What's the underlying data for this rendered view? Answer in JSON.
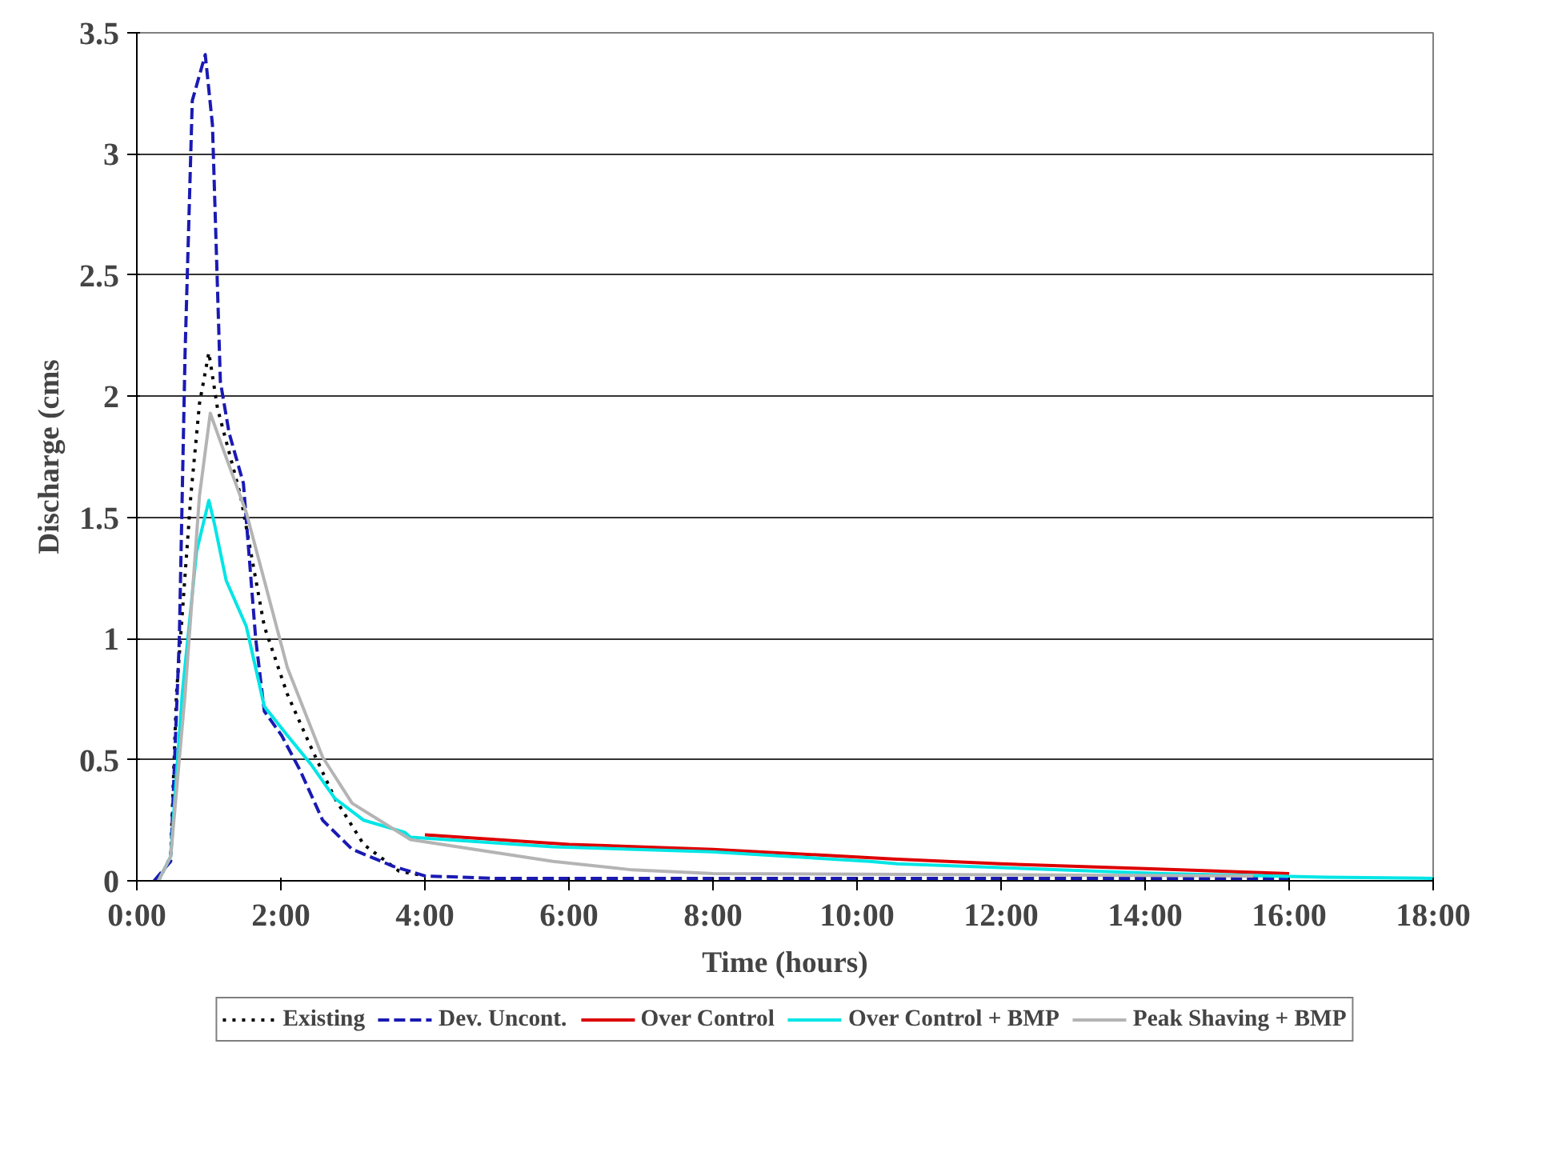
{
  "chart_data": {
    "type": "line",
    "xlabel": "Time (hours)",
    "ylabel": "Discharge (cms",
    "xlim": [
      0,
      18
    ],
    "ylim": [
      0,
      3.5
    ],
    "xticks": [
      {
        "value": 0,
        "label": "0:00"
      },
      {
        "value": 2,
        "label": "2:00"
      },
      {
        "value": 4,
        "label": "4:00"
      },
      {
        "value": 6,
        "label": "6:00"
      },
      {
        "value": 8,
        "label": "8:00"
      },
      {
        "value": 10,
        "label": "10:00"
      },
      {
        "value": 12,
        "label": "12:00"
      },
      {
        "value": 14,
        "label": "14:00"
      },
      {
        "value": 16,
        "label": "16:00"
      },
      {
        "value": 18,
        "label": "18:00"
      }
    ],
    "yticks": [
      0,
      0.5,
      1,
      1.5,
      2,
      2.5,
      3,
      3.5
    ],
    "grid": "y",
    "legend": "bottom",
    "series": [
      {
        "name": "Existing",
        "color": "#000000",
        "line_style": "dotted",
        "x": [
          0.3,
          0.47,
          0.55,
          0.75,
          0.87,
          1.0,
          1.12,
          1.44,
          1.77,
          2.09,
          2.42,
          2.75,
          3.15,
          3.64,
          4.0
        ],
        "values": [
          0.0,
          0.1,
          0.77,
          1.59,
          1.97,
          2.18,
          1.95,
          1.59,
          1.05,
          0.77,
          0.55,
          0.34,
          0.15,
          0.04,
          0.02
        ]
      },
      {
        "name": "Dev. Uncont.",
        "color": "#1a1ab3",
        "line_style": "dashed",
        "x": [
          0.24,
          0.47,
          0.59,
          0.67,
          0.77,
          0.95,
          1.05,
          1.16,
          1.28,
          1.48,
          1.65,
          1.77,
          2.01,
          2.26,
          2.58,
          2.99,
          3.56,
          4.0,
          5.0,
          8.0,
          12.0,
          16.0
        ],
        "values": [
          0.0,
          0.08,
          1.0,
          2.18,
          3.22,
          3.41,
          3.12,
          2.06,
          1.85,
          1.64,
          1.0,
          0.7,
          0.6,
          0.46,
          0.25,
          0.13,
          0.06,
          0.02,
          0.01,
          0.01,
          0.01,
          0.01
        ]
      },
      {
        "name": "Over Control",
        "color": "#dd0000",
        "line_style": "solid",
        "x": [
          4.0,
          6.0,
          8.0,
          10.5,
          12.0,
          14.0,
          16.0
        ],
        "values": [
          0.19,
          0.15,
          0.13,
          0.09,
          0.07,
          0.05,
          0.03
        ]
      },
      {
        "name": "Over Control + BMP",
        "color": "#00e5e5",
        "line_style": "solid",
        "x": [
          0.3,
          0.47,
          0.63,
          0.83,
          1.0,
          1.08,
          1.24,
          1.52,
          1.77,
          2.09,
          2.42,
          2.75,
          3.15,
          3.72,
          3.8,
          5.78,
          7.98,
          10.18,
          10.56,
          14.23,
          16.5,
          18.0
        ],
        "values": [
          0.0,
          0.1,
          0.77,
          1.36,
          1.57,
          1.47,
          1.24,
          1.05,
          0.72,
          0.6,
          0.48,
          0.34,
          0.25,
          0.2,
          0.18,
          0.14,
          0.12,
          0.08,
          0.07,
          0.03,
          0.015,
          0.01
        ]
      },
      {
        "name": "Peak Shaving + BMP",
        "color": "#b4b4b4",
        "line_style": "solid",
        "x": [
          0.3,
          0.47,
          0.67,
          0.87,
          1.02,
          1.2,
          1.52,
          1.77,
          2.09,
          2.58,
          2.99,
          3.8,
          5.78,
          6.88,
          8.0,
          12.0,
          15.5
        ],
        "values": [
          0.0,
          0.1,
          0.77,
          1.59,
          1.93,
          1.78,
          1.52,
          1.24,
          0.88,
          0.51,
          0.32,
          0.17,
          0.08,
          0.045,
          0.03,
          0.025,
          0.02
        ]
      }
    ]
  }
}
